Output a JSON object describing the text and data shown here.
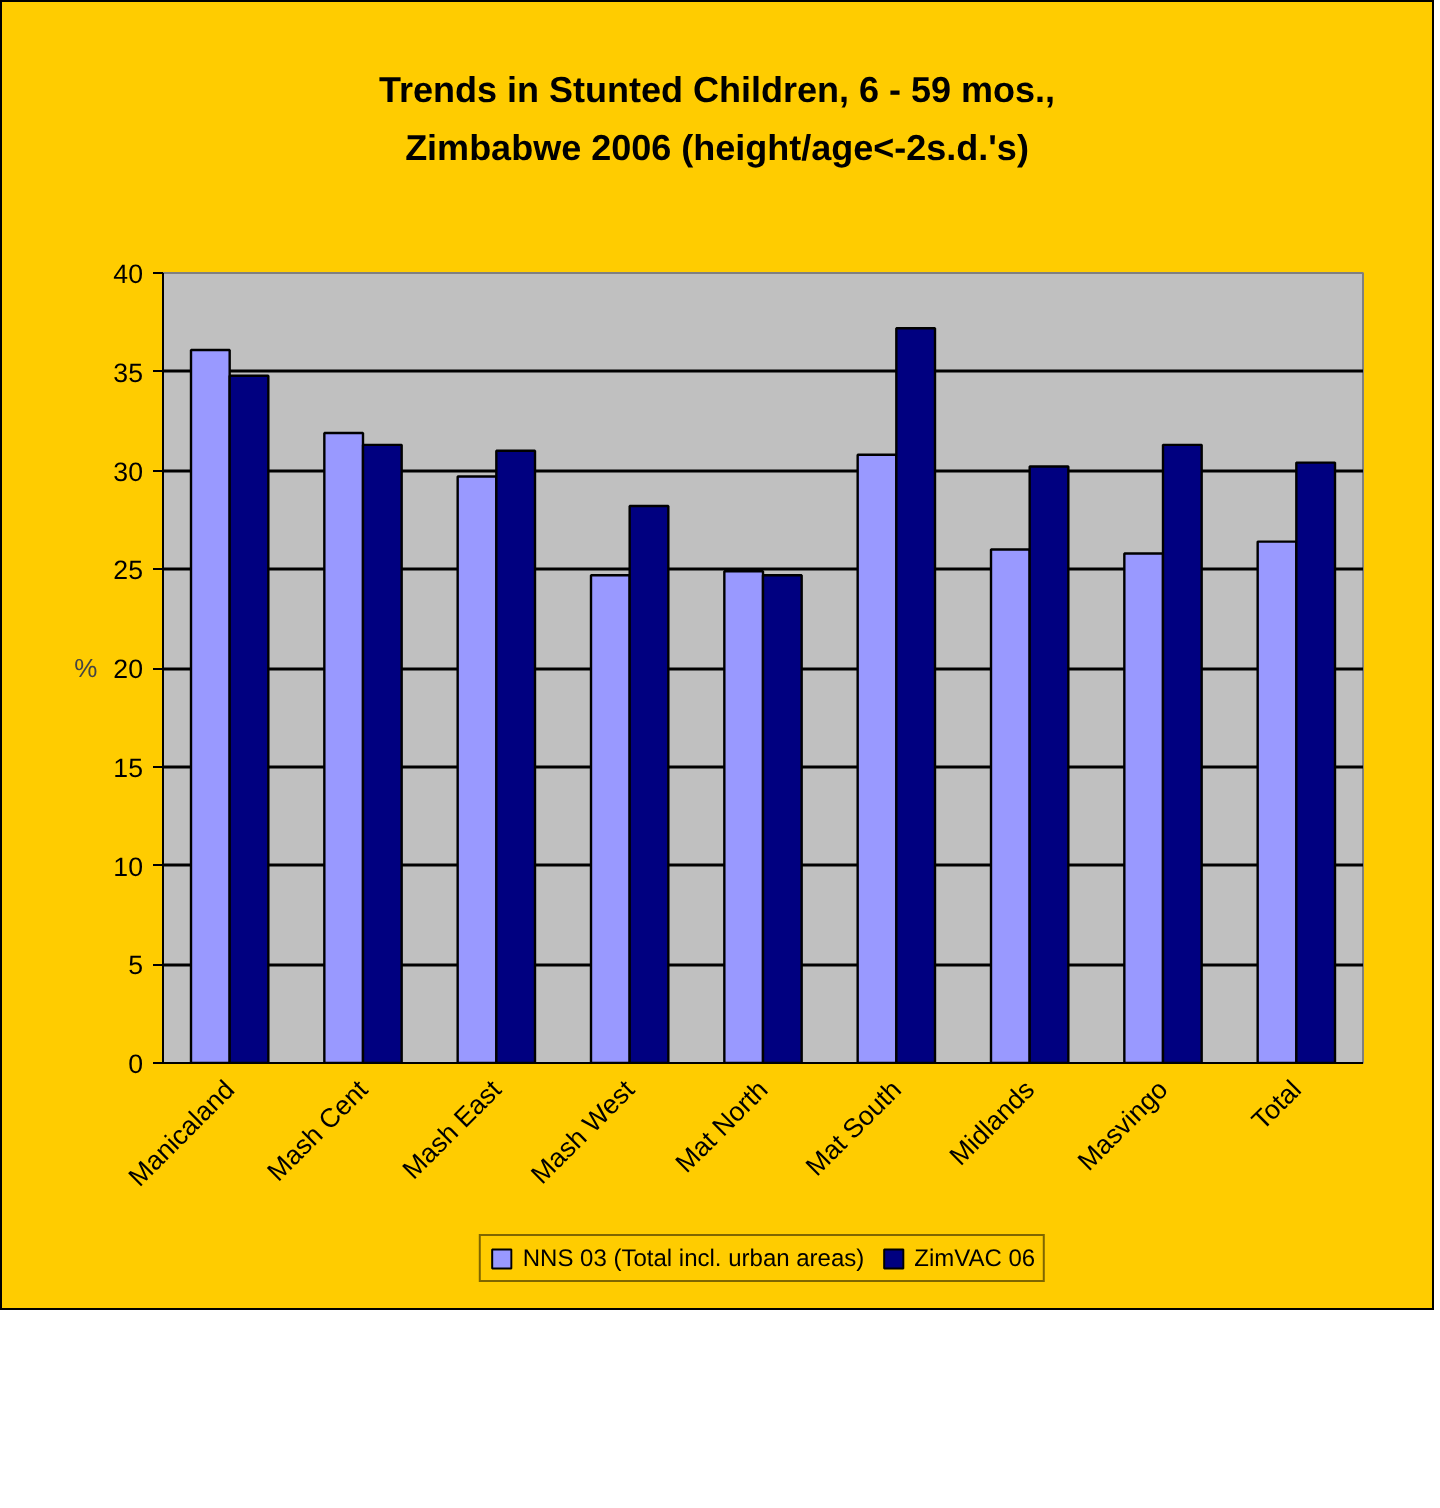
{
  "chart_data": {
    "type": "bar",
    "title": "Trends in Stunted Children, 6 - 59 mos., Zimbabwe 2006 (height/age<-2s.d.'s)",
    "ylabel": "%",
    "categories": [
      "Manicaland",
      "Mash Cent",
      "Mash East",
      "Mash West",
      "Mat North",
      "Mat South",
      "Midlands",
      "Masvingo",
      "Total"
    ],
    "series": [
      {
        "name": "NNS 03 (Total incl. urban areas)",
        "color": "#9999ff",
        "values": [
          36.1,
          31.9,
          29.7,
          24.7,
          24.9,
          30.8,
          26.0,
          25.8,
          26.4
        ]
      },
      {
        "name": "ZimVAC 06",
        "color": "#000080",
        "values": [
          34.8,
          31.3,
          31.0,
          28.2,
          24.7,
          37.2,
          30.2,
          31.3,
          30.4
        ]
      }
    ],
    "ylim": [
      0,
      40
    ],
    "yticks": [
      0,
      5,
      10,
      15,
      20,
      25,
      30,
      35,
      40
    ],
    "grid": "y",
    "legend": "bottom"
  }
}
